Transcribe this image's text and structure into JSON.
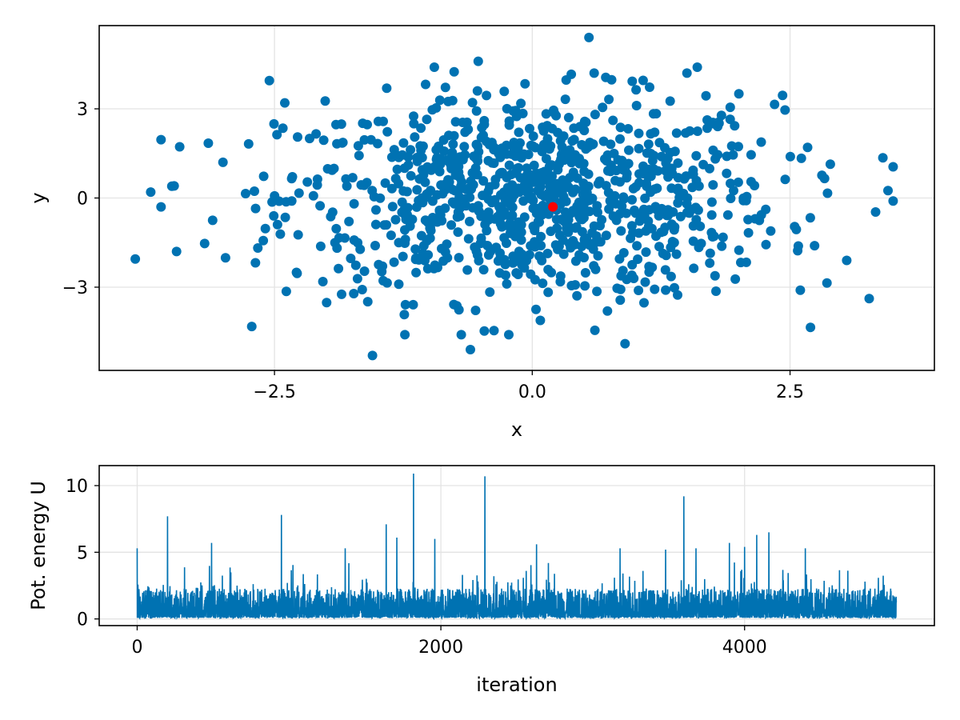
{
  "chart_data": [
    {
      "type": "scatter",
      "xlabel": "x",
      "ylabel": "y",
      "xlim": [
        -4.2,
        3.9
      ],
      "ylim": [
        -5.8,
        5.8
      ],
      "x_ticks": [
        -2.5,
        0.0,
        2.5
      ],
      "x_tick_labels": [
        "−2.5",
        "0.0",
        "2.5"
      ],
      "y_ticks": [
        -3,
        0,
        3
      ],
      "y_tick_labels": [
        "−3",
        "0",
        "3"
      ],
      "grid": true,
      "colors": {
        "points": "#0072B2",
        "highlight": "#FF0000"
      },
      "series": [
        {
          "n_points_shown": 1000,
          "distribution": "approx. normal, x std ≈ 1.2, y std ≈ 1.7, centered near (0, 0)",
          "extreme_points": [
            {
              "x": -3.85,
              "y": -2.05
            },
            {
              "x": -3.7,
              "y": 0.2
            },
            {
              "x": -3.6,
              "y": -0.3
            },
            {
              "x": -3.45,
              "y": -1.8
            },
            {
              "x": -3.1,
              "y": -0.75
            },
            {
              "x": -3.0,
              "y": 1.2
            },
            {
              "x": -2.55,
              "y": 3.95
            },
            {
              "x": -2.4,
              "y": 3.2
            },
            {
              "x": -1.55,
              "y": -5.3
            },
            {
              "x": -0.95,
              "y": 4.4
            },
            {
              "x": 0.55,
              "y": 5.4
            },
            {
              "x": 0.6,
              "y": 4.2
            },
            {
              "x": 1.5,
              "y": 4.2
            },
            {
              "x": 1.6,
              "y": 4.4
            },
            {
              "x": 0.9,
              "y": -4.9
            },
            {
              "x": -0.6,
              "y": -5.1
            },
            {
              "x": 2.35,
              "y": 3.15
            },
            {
              "x": 2.6,
              "y": -3.1
            },
            {
              "x": 3.05,
              "y": -2.1
            },
            {
              "x": 3.5,
              "y": 1.05
            },
            {
              "x": 3.5,
              "y": -0.1
            },
            {
              "x": 3.45,
              "y": 0.25
            }
          ]
        },
        {
          "role": "highlight",
          "points": [
            {
              "x": 0.2,
              "y": -0.3
            }
          ]
        }
      ]
    },
    {
      "type": "line",
      "xlabel": "iteration",
      "ylabel": "Pot. energy U",
      "xlim": [
        -250,
        5250
      ],
      "ylim": [
        -0.5,
        11.5
      ],
      "x_ticks": [
        0,
        2000,
        4000
      ],
      "x_tick_labels": [
        "0",
        "2000",
        "4000"
      ],
      "y_ticks": [
        0,
        5,
        10
      ],
      "y_tick_labels": [
        "0",
        "5",
        "10"
      ],
      "grid": true,
      "colors": {
        "line": "#0072B2"
      },
      "series": [
        {
          "n_points": 5000,
          "baseline_range": [
            0.1,
            2.5
          ],
          "spikes": [
            {
              "x": 0,
              "y": 5.3
            },
            {
              "x": 200,
              "y": 7.7
            },
            {
              "x": 490,
              "y": 5.7
            },
            {
              "x": 950,
              "y": 7.8
            },
            {
              "x": 1370,
              "y": 5.3
            },
            {
              "x": 1640,
              "y": 7.1
            },
            {
              "x": 1710,
              "y": 6.1
            },
            {
              "x": 1820,
              "y": 10.9
            },
            {
              "x": 1960,
              "y": 6.0
            },
            {
              "x": 2290,
              "y": 10.7
            },
            {
              "x": 2630,
              "y": 5.6
            },
            {
              "x": 3180,
              "y": 5.3
            },
            {
              "x": 3480,
              "y": 5.2
            },
            {
              "x": 3600,
              "y": 9.2
            },
            {
              "x": 3680,
              "y": 5.3
            },
            {
              "x": 3900,
              "y": 5.7
            },
            {
              "x": 4000,
              "y": 5.4
            },
            {
              "x": 4080,
              "y": 6.3
            },
            {
              "x": 4160,
              "y": 6.5
            },
            {
              "x": 4400,
              "y": 5.3
            }
          ]
        }
      ]
    }
  ]
}
